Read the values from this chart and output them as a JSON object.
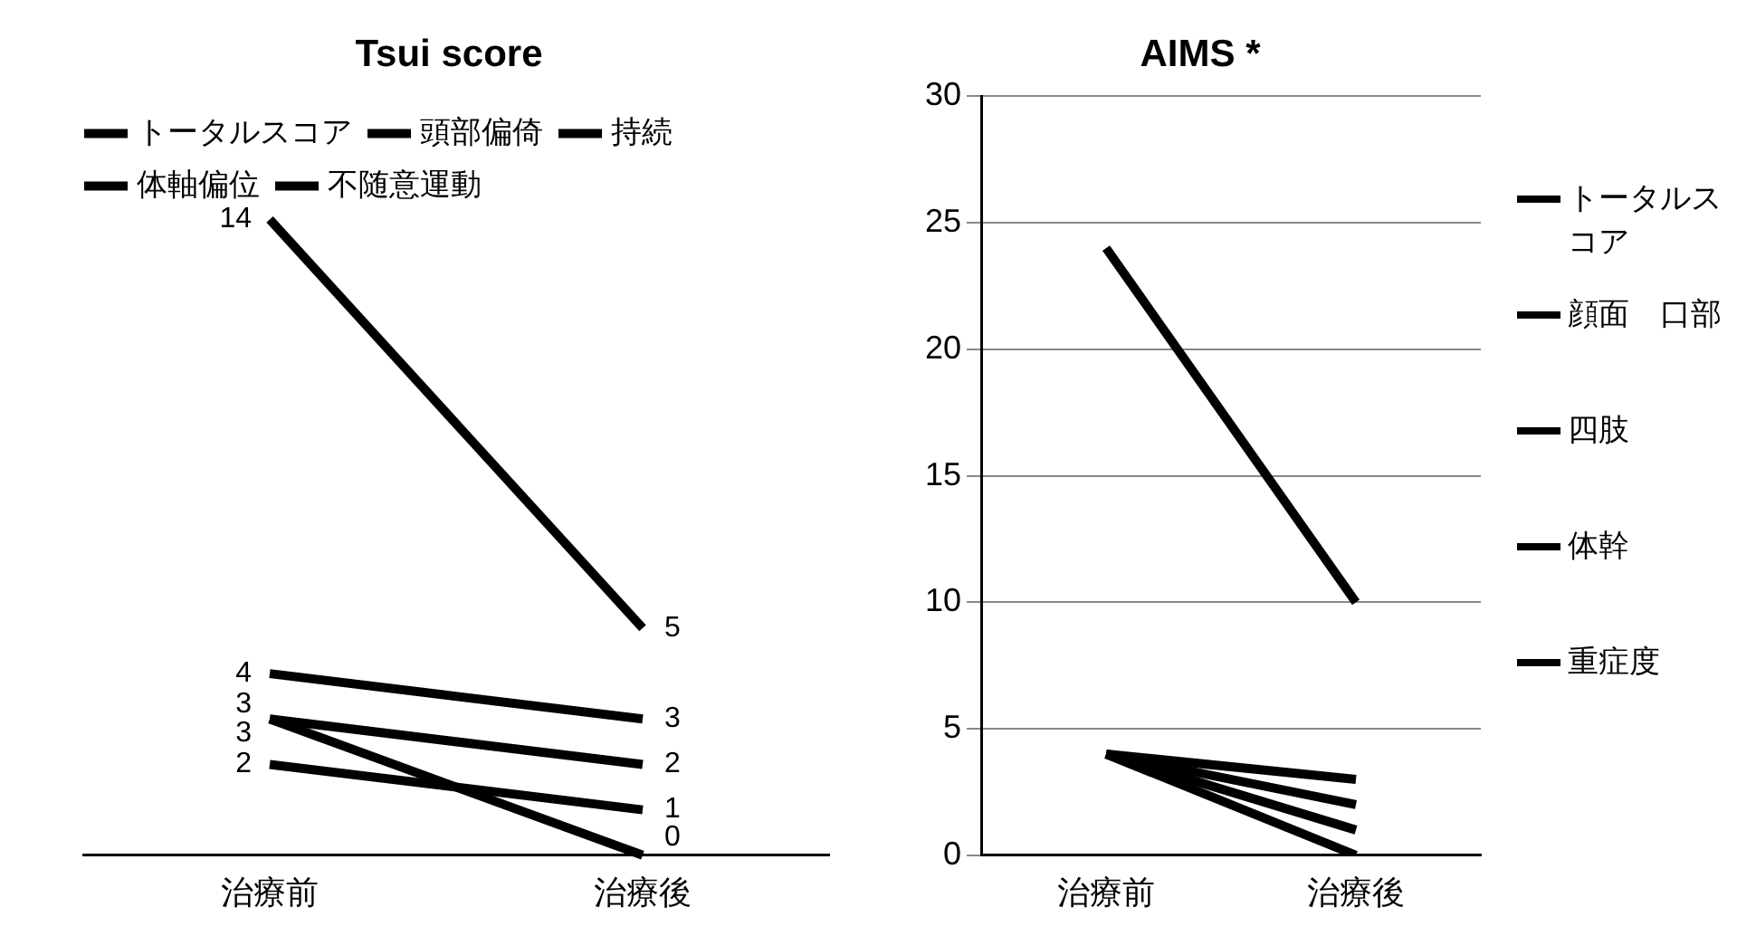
{
  "chart_data": [
    {
      "type": "line",
      "title": "Tsui score",
      "categories": [
        "治療前",
        "治療後"
      ],
      "tick_labels": "x",
      "grid": false,
      "legend": "top",
      "data_labels": true,
      "series": [
        {
          "name": "トータルスコア",
          "color": "#000000",
          "values": [
            14,
            5
          ]
        },
        {
          "name": "頭部偏倚",
          "color": "#000000",
          "values": [
            4,
            3
          ]
        },
        {
          "name": "持続",
          "color": "#000000",
          "values": [
            3,
            2
          ]
        },
        {
          "name": "体軸偏位",
          "color": "#000000",
          "values": [
            2,
            1
          ]
        },
        {
          "name": "不随意運動",
          "color": "#000000",
          "values": [
            3,
            0
          ]
        }
      ]
    },
    {
      "type": "line",
      "title": "AIMS *",
      "categories": [
        "治療前",
        "治療後"
      ],
      "ylim": [
        0,
        30
      ],
      "yticks": [
        0,
        5,
        10,
        15,
        20,
        25,
        30
      ],
      "grid": "y",
      "legend": "right",
      "series": [
        {
          "name": "トータルスコア",
          "color": "#000000",
          "values": [
            24,
            10
          ]
        },
        {
          "name": "顔面　口部",
          "color": "#000000",
          "values": [
            4,
            3
          ]
        },
        {
          "name": "四肢",
          "color": "#000000",
          "values": [
            4,
            2
          ]
        },
        {
          "name": "体幹",
          "color": "#000000",
          "values": [
            4,
            1
          ]
        },
        {
          "name": "重症度",
          "color": "#000000",
          "values": [
            4,
            0
          ]
        }
      ]
    }
  ]
}
